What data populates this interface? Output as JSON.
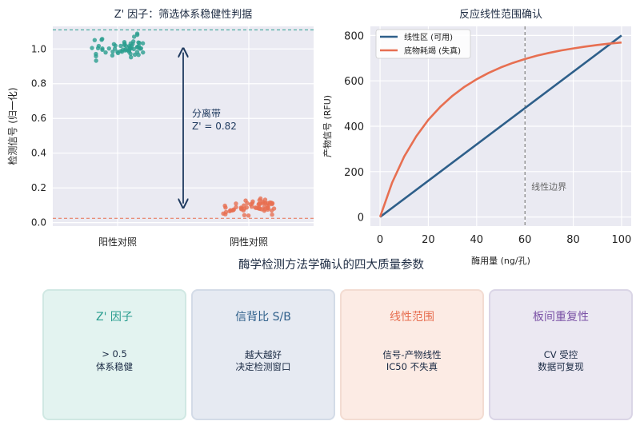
{
  "chart_data": [
    {
      "type": "scatter",
      "title": "Z' 因子：筛选体系稳健性判据",
      "ylabel": "检测信号 (归一化)",
      "categories": [
        "阳性对照",
        "阴性对照"
      ],
      "yticks": [
        "0.0",
        "0.2",
        "0.4",
        "0.6",
        "0.8",
        "1.0"
      ],
      "ylim": [
        -0.02,
        1.13
      ],
      "grid": true,
      "series": [
        {
          "name": "阳性对照",
          "color": "#2a9d8f",
          "mean": 1.0,
          "spread": [
            0.92,
            1.1
          ]
        },
        {
          "name": "阴性对照",
          "color": "#e76f51",
          "mean": 0.09,
          "spread": [
            0.03,
            0.15
          ]
        }
      ],
      "threshold_lines": [
        {
          "y": 1.11,
          "color": "#2a9d8f"
        },
        {
          "y": 0.025,
          "color": "#e76f51"
        }
      ],
      "annotation": {
        "line1": "分离带",
        "line2": "Z' = 0.82",
        "y_from": 0.11,
        "y_to": 0.98
      }
    },
    {
      "type": "line",
      "title": "反应线性范围确认",
      "xlabel": "酶用量 (ng/孔)",
      "ylabel": "产物信号 (RFU)",
      "xticks": [
        "0",
        "20",
        "40",
        "60",
        "80",
        "100"
      ],
      "yticks": [
        "0",
        "200",
        "400",
        "600",
        "800"
      ],
      "xlim": [
        -4,
        104
      ],
      "ylim": [
        -40,
        840
      ],
      "grid": true,
      "legend_position": "top-left",
      "series": [
        {
          "name": "线性区 (可用)",
          "color": "#2e5f8a",
          "x": [
            0,
            100
          ],
          "y": [
            0,
            800
          ]
        },
        {
          "name": "底物耗竭 (失真)",
          "color": "#e76f51",
          "x": [
            0,
            5,
            10,
            15,
            20,
            25,
            30,
            35,
            40,
            45,
            50,
            55,
            60,
            65,
            70,
            75,
            80,
            85,
            90,
            95,
            100
          ],
          "y": [
            0,
            152,
            267,
            356,
            428,
            486,
            534,
            574,
            607,
            635,
            659,
            679,
            696,
            711,
            723,
            734,
            743,
            751,
            758,
            764,
            769
          ]
        }
      ],
      "vline": {
        "x": 60,
        "label": "线性边界"
      }
    }
  ],
  "section_title": "酶学检测方法学确认的四大质量参数",
  "cards": [
    {
      "title": "Z' 因子",
      "line1": "> 0.5",
      "line2": "体系稳健",
      "color": "#2a9d8f",
      "bg": "#e3f3f0",
      "border": "#d0e8e3"
    },
    {
      "title": "信背比 S/B",
      "line1": "越大越好",
      "line2": "决定检测窗口",
      "color": "#2e5f8a",
      "bg": "#e6eaf2",
      "border": "#d3dbe7"
    },
    {
      "title": "线性范围",
      "line1": "信号-产物线性",
      "line2": "IC50 不失真",
      "color": "#e76f51",
      "bg": "#fcebe4",
      "border": "#f3dcd2"
    },
    {
      "title": "板间重复性",
      "line1": "CV 受控",
      "line2": "数据可复现",
      "color": "#7b52a6",
      "bg": "#ebe8f2",
      "border": "#dad5e6"
    }
  ]
}
